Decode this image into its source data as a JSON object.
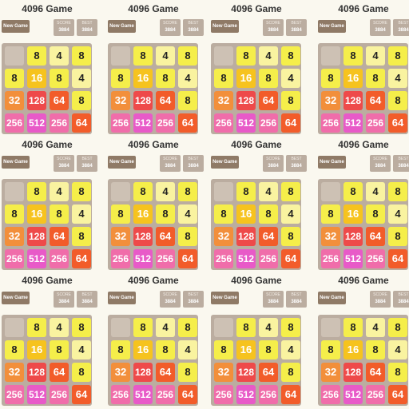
{
  "game": {
    "title": "4096 Game",
    "new_game_label": "New Game",
    "score_label": "SCORE",
    "score": "3884",
    "best_label": "BEST",
    "best": "3884"
  },
  "board": [
    [
      0,
      8,
      4,
      8
    ],
    [
      8,
      16,
      8,
      4
    ],
    [
      32,
      128,
      64,
      8
    ],
    [
      256,
      512,
      256,
      64
    ]
  ],
  "tile_colors": {
    "0": {
      "bg": "#cdc1b4",
      "fg": "#cdc1b4"
    },
    "4": {
      "bg": "#f9f3a0",
      "fg": "#222222"
    },
    "8": {
      "bg": "#f5ee4a",
      "fg": "#222222"
    },
    "16": {
      "bg": "#f6c31e",
      "fg": "#ffffff"
    },
    "32": {
      "bg": "#f28f3b",
      "fg": "#ffffff"
    },
    "64": {
      "bg": "#f25c2a",
      "fg": "#ffffff"
    },
    "128": {
      "bg": "#ee4a4a",
      "fg": "#ffffff"
    },
    "256": {
      "bg": "#f06daa",
      "fg": "#ffffff"
    },
    "512": {
      "bg": "#e85ac8",
      "fg": "#ffffff"
    }
  }
}
